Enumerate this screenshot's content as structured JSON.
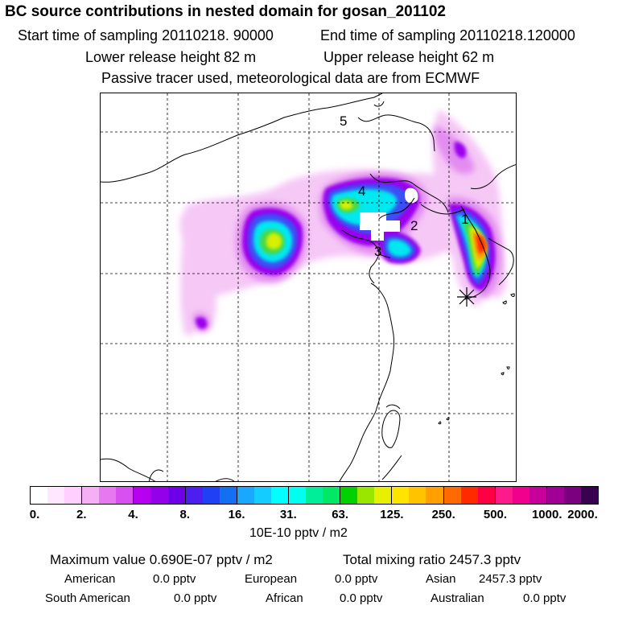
{
  "header": {
    "title": "BC  source contributions in nested domain for gosan_201102",
    "start_label": "Start time of sampling 20110218. 90000",
    "end_label": "End time of sampling 20110218.120000",
    "lower_height": "Lower release height   82 m",
    "upper_height": "Upper release height   62 m",
    "tracer_note": "Passive tracer used, meteorological data are from ECMWF"
  },
  "map": {
    "markers": [
      {
        "label": "1"
      },
      {
        "label": "2"
      },
      {
        "label": "3"
      },
      {
        "label": "4"
      },
      {
        "label": "5"
      }
    ],
    "receptor_icon": "asterisk-star-icon"
  },
  "colorbar": {
    "colors": [
      "#ffffff",
      "#ffe8ff",
      "#ffd0ff",
      "#f5b0f5",
      "#e878f0",
      "#d850f0",
      "#b800f0",
      "#9500ea",
      "#6d00e8",
      "#4c1ef0",
      "#2040f5",
      "#1470f0",
      "#1aa8ff",
      "#14ccff",
      "#00ffff",
      "#00fff0",
      "#00ee99",
      "#00e866",
      "#00d000",
      "#9be600",
      "#e6f000",
      "#ffe400",
      "#ffc400",
      "#ffa000",
      "#ff6a00",
      "#ff2a00",
      "#ff0044",
      "#ff1a8c",
      "#f0008c",
      "#c8009a",
      "#a00095",
      "#7a0080",
      "#3a0050"
    ],
    "tick_labels": [
      "0.",
      "2.",
      "4.",
      "8.",
      "16.",
      "31.",
      "63.",
      "125.",
      "250.",
      "500.",
      "1000.",
      "2000."
    ],
    "units": "10E-10 pptv / m2"
  },
  "footer": {
    "max_value": "Maximum value  0.690E-07 pptv / m2",
    "total_mixing": "Total mixing ratio     2457.3 pptv",
    "american_label": "American",
    "american_value": "0.0 pptv",
    "european_label": "European",
    "european_value": "0.0 pptv",
    "asian_label": "Asian",
    "asian_value": "2457.3 pptv",
    "south_american_label": "South American",
    "south_american_value": "0.0 pptv",
    "african_label": "African",
    "african_value": "0.0 pptv",
    "australian_label": "Australian",
    "australian_value": "0.0 pptv"
  }
}
